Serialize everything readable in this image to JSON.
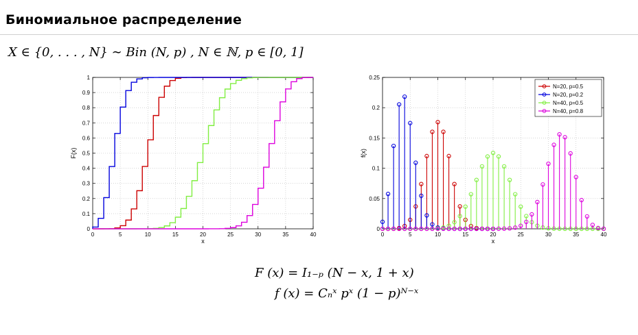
{
  "slide": {
    "title": "Биномиальное распределение",
    "definition": "X ∈ {0, . . . , N} ∼ Bin (N, p) ,  N ∈ ℕ,  p ∈ [0, 1]",
    "cdf_formula": "F (x) = I₁₋ₚ (N − x, 1 + x)",
    "pmf_formula": "f (x) = Cₙˣ pˣ (1 − p)ᴺ⁻ˣ"
  },
  "colors": {
    "N20_p05": "#cc0000",
    "N20_p02": "#0000dd",
    "N40_p05": "#80ee40",
    "N40_p08": "#dd00dd"
  },
  "chart_data": [
    {
      "type": "line",
      "step": true,
      "xlabel": "x",
      "ylabel": "F(x)",
      "xlim": [
        0,
        40
      ],
      "ylim": [
        0,
        1
      ],
      "xticks": [
        0,
        5,
        10,
        15,
        20,
        25,
        30,
        35,
        40
      ],
      "yticks": [
        0,
        0.1,
        0.2,
        0.3,
        0.4,
        0.5,
        0.6,
        0.7,
        0.8,
        0.9,
        1
      ],
      "grid": true,
      "series": [
        {
          "name": "N=20, p=0.5",
          "color": "#cc0000",
          "n": 20,
          "p": 0.5
        },
        {
          "name": "N=20, p=0.2",
          "color": "#0000dd",
          "n": 20,
          "p": 0.2
        },
        {
          "name": "N=40, p=0.5",
          "color": "#80ee40",
          "n": 40,
          "p": 0.5
        },
        {
          "name": "N=40, p=0.8",
          "color": "#dd00dd",
          "n": 40,
          "p": 0.8
        }
      ]
    },
    {
      "type": "stem",
      "xlabel": "x",
      "ylabel": "f(x)",
      "xlim": [
        0,
        40
      ],
      "ylim": [
        0,
        0.25
      ],
      "xticks": [
        0,
        5,
        10,
        15,
        20,
        25,
        30,
        35,
        40
      ],
      "yticks": [
        0,
        0.05,
        0.1,
        0.15,
        0.2,
        0.25
      ],
      "grid": true,
      "legend_position": "top-right",
      "series": [
        {
          "name": "N=20, p=0.5",
          "color": "#cc0000",
          "n": 20,
          "p": 0.5
        },
        {
          "name": "N=20, p=0.2",
          "color": "#0000dd",
          "n": 20,
          "p": 0.2
        },
        {
          "name": "N=40, p=0.5",
          "color": "#80ee40",
          "n": 40,
          "p": 0.5
        },
        {
          "name": "N=40, p=0.8",
          "color": "#dd00dd",
          "n": 40,
          "p": 0.8
        }
      ]
    }
  ]
}
